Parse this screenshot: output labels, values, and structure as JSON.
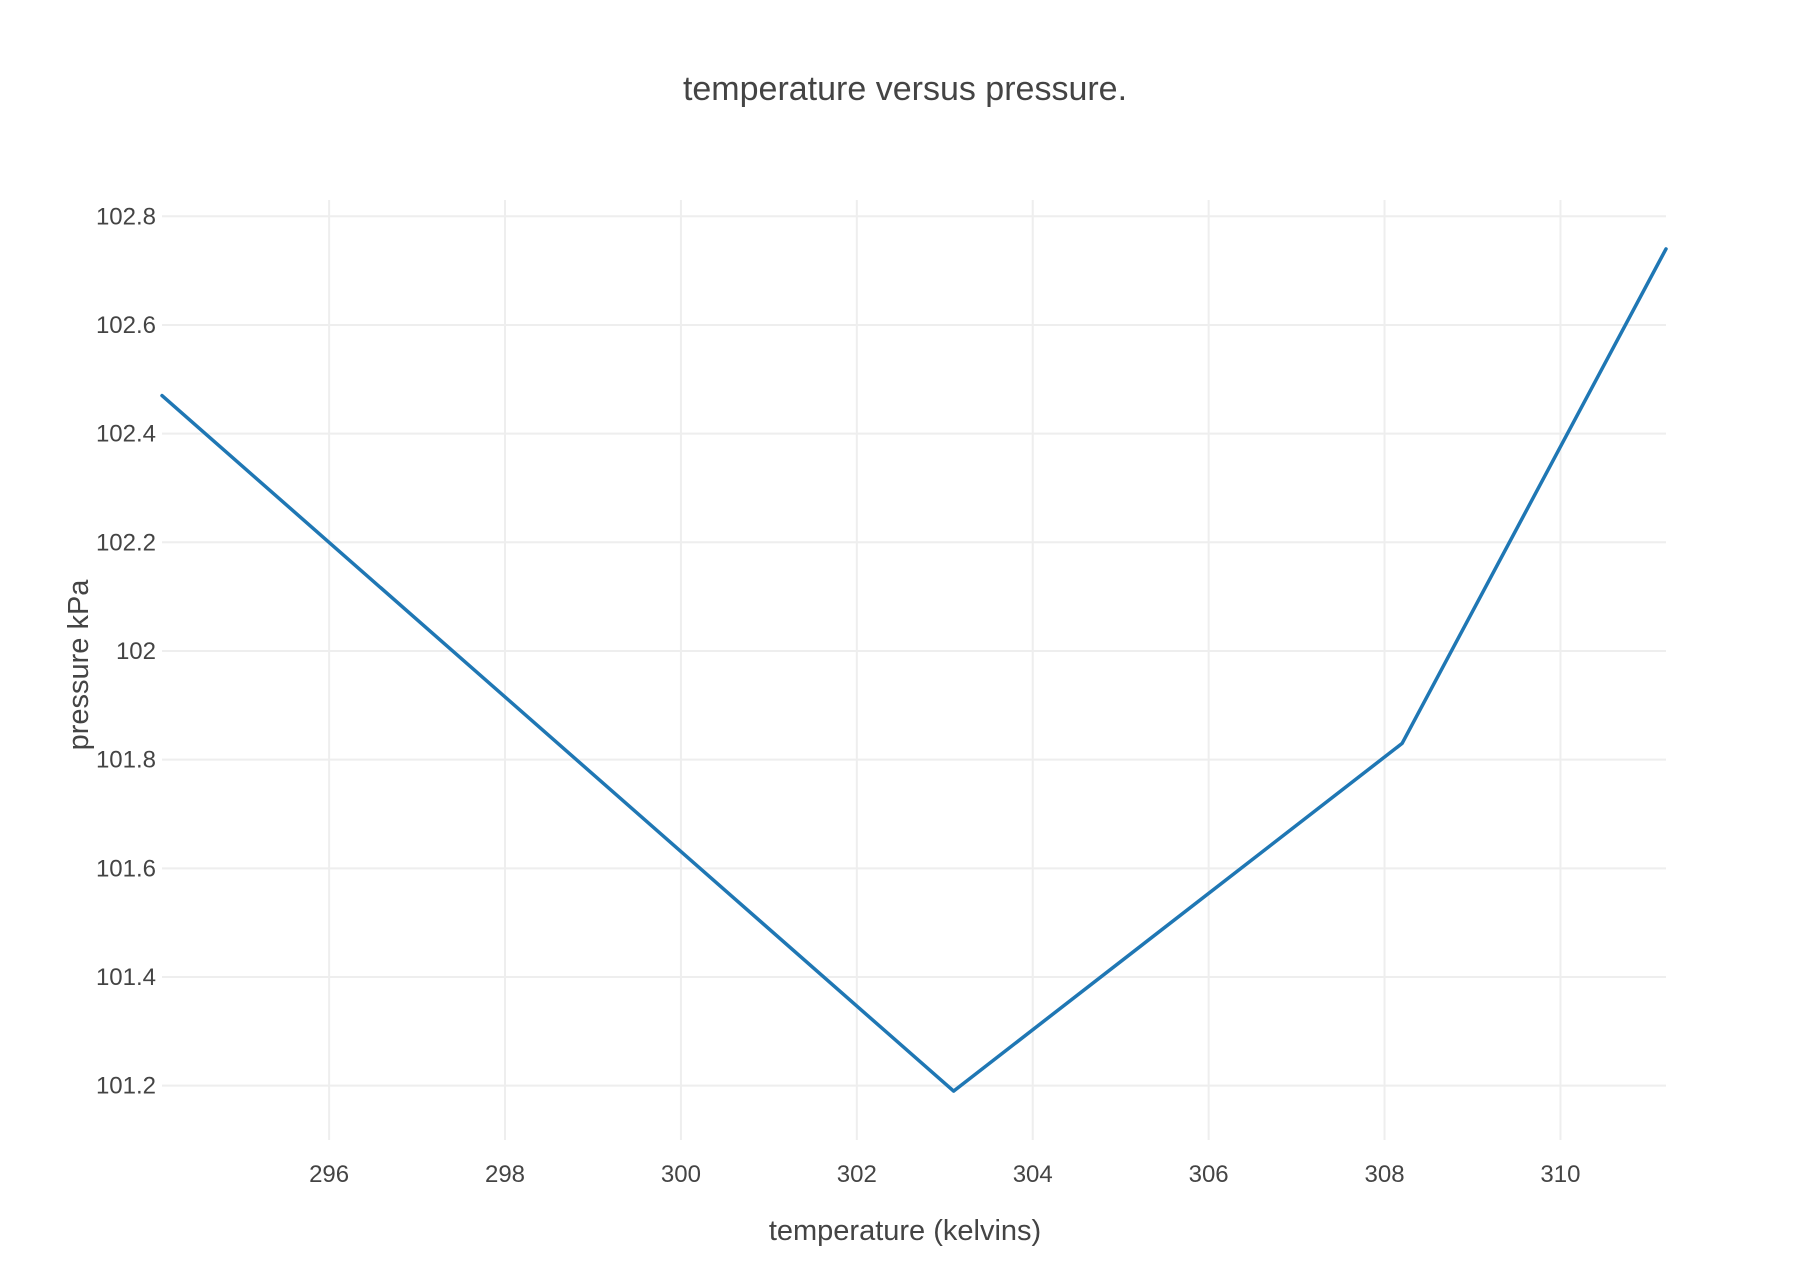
{
  "chart_data": {
    "type": "line",
    "title": "temperature versus pressure.",
    "xlabel": "temperature (kelvins)",
    "ylabel": "pressure kPa",
    "xlim": [
      294.1,
      311.2
    ],
    "ylim": [
      101.1,
      102.83
    ],
    "x_ticks": [
      296,
      298,
      300,
      302,
      304,
      306,
      308,
      310
    ],
    "x_tick_labels": [
      "296",
      "298",
      "300",
      "302",
      "304",
      "306",
      "308",
      "310"
    ],
    "y_ticks": [
      101.2,
      101.4,
      101.6,
      101.8,
      102,
      102.2,
      102.4,
      102.6,
      102.8
    ],
    "y_tick_labels": [
      "101.2",
      "101.4",
      "101.6",
      "101.8",
      "102",
      "102.2",
      "102.4",
      "102.6",
      "102.8"
    ],
    "grid": true,
    "series": [
      {
        "color": "#1f77b4",
        "x": [
          294.1,
          303.1,
          308.2,
          311.2
        ],
        "y": [
          102.47,
          101.19,
          101.83,
          102.74
        ]
      }
    ]
  }
}
